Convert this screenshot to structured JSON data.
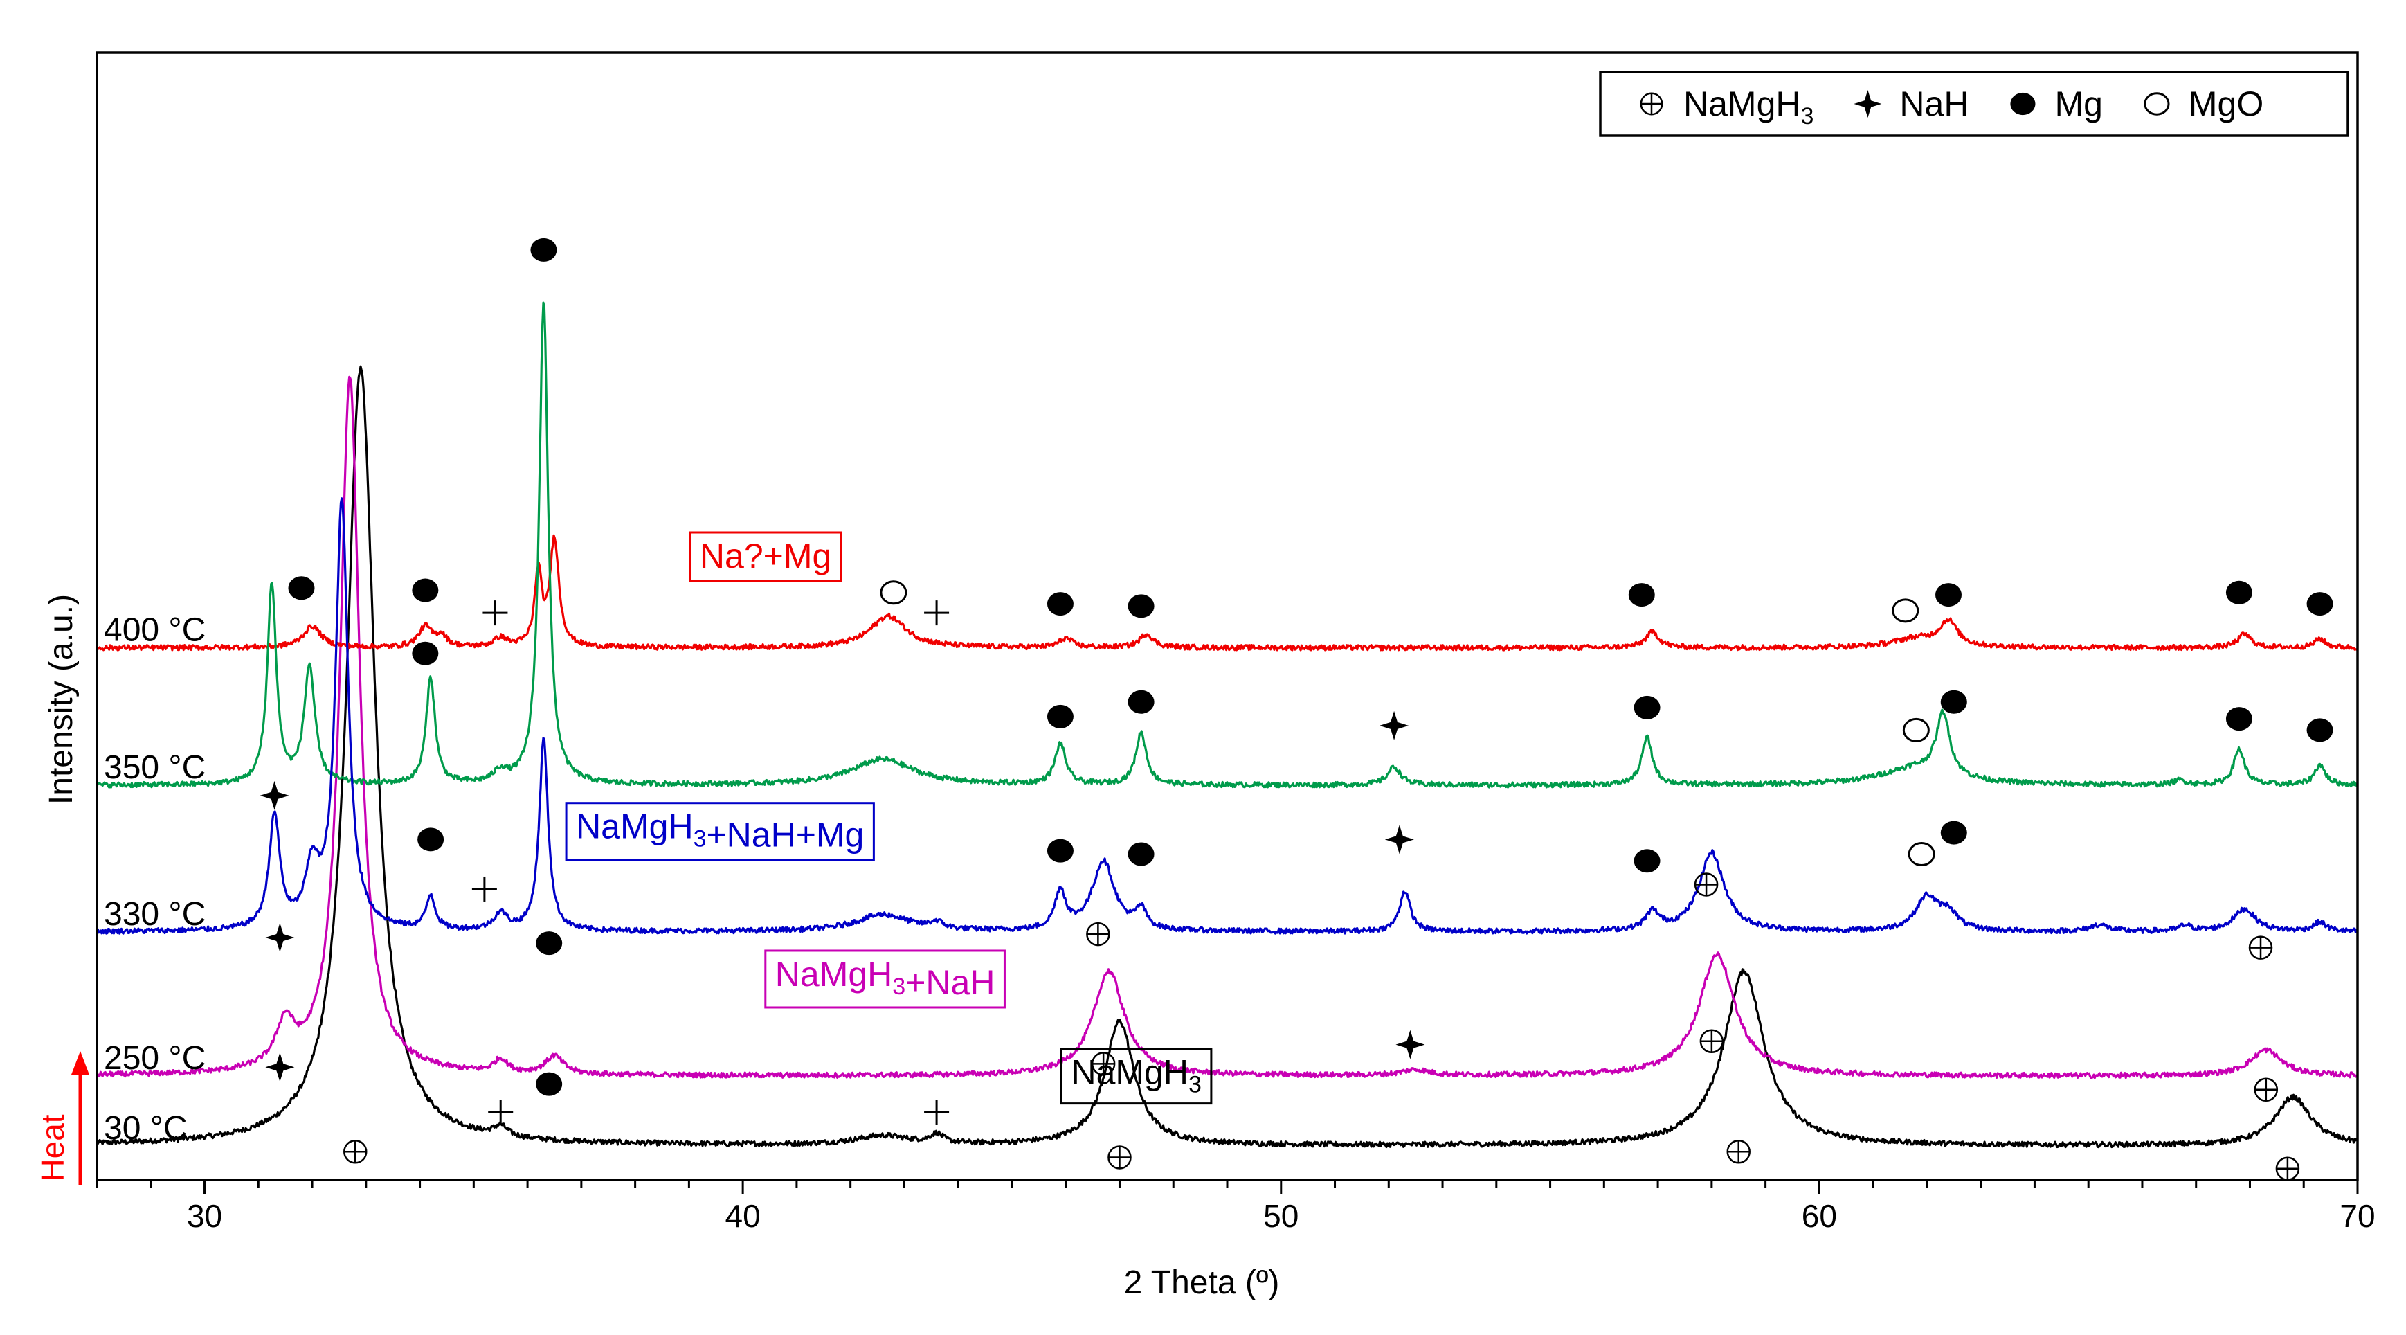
{
  "chart_data": {
    "type": "line",
    "title": "",
    "xlabel": "2 Theta (º)",
    "ylabel": "Intensity (a.u.)",
    "xlim": [
      28,
      70
    ],
    "ylim": [
      0,
      100
    ],
    "xticks": [
      30,
      40,
      50,
      60,
      70
    ],
    "x_minor_step": 1,
    "grid": false,
    "legend_position": "top-right",
    "heat_label": "Heat",
    "legend": [
      {
        "marker": "oplus",
        "name": "NaMgH",
        "sub": "3"
      },
      {
        "marker": "star",
        "name": "NaH",
        "sub": ""
      },
      {
        "marker": "filled-circle",
        "name": "Mg",
        "sub": ""
      },
      {
        "marker": "open-circle",
        "name": "MgO",
        "sub": ""
      }
    ],
    "series": [
      {
        "name": "30 °C",
        "temperature": "30 °C",
        "color": "#000000",
        "baseline": 3.0,
        "peaks": [
          [
            32.9,
            69.0,
            0.32
          ],
          [
            35.5,
            0.9,
            0.15
          ],
          [
            42.6,
            0.8,
            0.6
          ],
          [
            43.6,
            0.8,
            0.15
          ],
          [
            47.0,
            11.0,
            0.33
          ],
          [
            58.6,
            15.5,
            0.45
          ],
          [
            68.8,
            4.3,
            0.4
          ]
        ],
        "phase_box": {
          "parts": [
            {
              "text": "NaMgH",
              "sub": "3"
            }
          ],
          "color": "#000000",
          "at": [
            46.1,
            8.5
          ]
        },
        "markers": [
          {
            "type": "oplus",
            "at": [
              32.8,
              2.5
            ]
          },
          {
            "type": "plus",
            "at": [
              35.5,
              6.0
            ]
          },
          {
            "type": "plus",
            "at": [
              43.6,
              6.0
            ]
          },
          {
            "type": "oplus",
            "at": [
              47.0,
              2.0
            ]
          },
          {
            "type": "oplus",
            "at": [
              58.5,
              2.5
            ]
          },
          {
            "type": "oplus",
            "at": [
              68.7,
              1.0
            ]
          }
        ]
      },
      {
        "name": "250 °C",
        "temperature": "250 °C",
        "color": "#c800b4",
        "baseline": 9.2,
        "peaks": [
          [
            31.5,
            3.8,
            0.2
          ],
          [
            32.7,
            62.0,
            0.22
          ],
          [
            35.5,
            1.2,
            0.15
          ],
          [
            36.5,
            1.6,
            0.2
          ],
          [
            46.8,
            9.3,
            0.35
          ],
          [
            52.5,
            0.5,
            0.3
          ],
          [
            58.1,
            10.8,
            0.4
          ],
          [
            68.3,
            2.3,
            0.35
          ]
        ],
        "phase_box": {
          "parts": [
            {
              "text": "NaMgH",
              "sub": "3"
            },
            {
              "text": "+NaH",
              "sub": ""
            }
          ],
          "color": "#c800b4",
          "at": [
            40.6,
            17.2
          ]
        },
        "markers": [
          {
            "type": "star",
            "at": [
              31.4,
              10.0
            ]
          },
          {
            "type": "filled-circle",
            "at": [
              36.4,
              8.5
            ]
          },
          {
            "type": "oplus",
            "at": [
              46.7,
              10.3
            ]
          },
          {
            "type": "star",
            "at": [
              52.4,
              12.0
            ]
          },
          {
            "type": "oplus",
            "at": [
              58.0,
              12.3
            ]
          },
          {
            "type": "oplus",
            "at": [
              68.3,
              8.0
            ]
          }
        ]
      },
      {
        "name": "330 °C",
        "temperature": "330 °C",
        "color": "#0000c8",
        "baseline": 22.0,
        "peaks": [
          [
            31.3,
            10.0,
            0.12
          ],
          [
            32.0,
            5.0,
            0.15
          ],
          [
            32.55,
            38.0,
            0.14
          ],
          [
            34.2,
            3.0,
            0.1
          ],
          [
            35.5,
            1.5,
            0.15
          ],
          [
            36.3,
            17.0,
            0.1
          ],
          [
            42.6,
            1.5,
            0.6
          ],
          [
            43.6,
            0.6,
            0.15
          ],
          [
            45.9,
            3.4,
            0.12
          ],
          [
            46.7,
            6.2,
            0.25
          ],
          [
            47.4,
            1.7,
            0.12
          ],
          [
            52.3,
            3.6,
            0.12
          ],
          [
            56.9,
            1.6,
            0.15
          ],
          [
            58.0,
            7.0,
            0.28
          ],
          [
            62.0,
            3.0,
            0.25
          ],
          [
            62.4,
            1.5,
            0.2
          ],
          [
            65.2,
            0.6,
            0.2
          ],
          [
            66.8,
            0.5,
            0.15
          ],
          [
            67.9,
            2.0,
            0.25
          ],
          [
            69.3,
            0.8,
            0.15
          ]
        ],
        "phase_box": {
          "parts": [
            {
              "text": "NaMgH",
              "sub": "3"
            },
            {
              "text": "+NaH+Mg",
              "sub": ""
            }
          ],
          "color": "#0000c8",
          "at": [
            36.9,
            30.3
          ]
        },
        "markers": [
          {
            "type": "star",
            "at": [
              31.4,
              21.5
            ]
          },
          {
            "type": "filled-circle",
            "at": [
              34.2,
              30.2
            ]
          },
          {
            "type": "plus",
            "at": [
              35.2,
              25.8
            ]
          },
          {
            "type": "filled-circle",
            "at": [
              36.4,
              21.0
            ]
          },
          {
            "type": "oplus",
            "at": [
              46.6,
              21.8
            ]
          },
          {
            "type": "filled-circle",
            "at": [
              45.9,
              29.2
            ]
          },
          {
            "type": "filled-circle",
            "at": [
              47.4,
              28.9
            ]
          },
          {
            "type": "star",
            "at": [
              52.2,
              30.2
            ]
          },
          {
            "type": "filled-circle",
            "at": [
              56.8,
              28.3
            ]
          },
          {
            "type": "oplus",
            "at": [
              57.9,
              26.2
            ]
          },
          {
            "type": "open-circle",
            "at": [
              61.9,
              28.9
            ]
          },
          {
            "type": "filled-circle",
            "at": [
              62.5,
              30.8
            ]
          },
          {
            "type": "oplus",
            "at": [
              68.2,
              20.6
            ]
          }
        ]
      },
      {
        "name": "350 °C",
        "temperature": "350 °C",
        "color": "#009b4b",
        "baseline": 35.0,
        "peaks": [
          [
            31.25,
            17.8,
            0.1
          ],
          [
            31.95,
            10.4,
            0.12
          ],
          [
            34.2,
            9.5,
            0.1
          ],
          [
            35.5,
            1.0,
            0.15
          ],
          [
            36.3,
            43.0,
            0.1
          ],
          [
            42.6,
            2.3,
            0.7
          ],
          [
            45.9,
            3.6,
            0.12
          ],
          [
            47.4,
            4.6,
            0.12
          ],
          [
            52.1,
            1.6,
            0.15
          ],
          [
            56.8,
            4.2,
            0.12
          ],
          [
            62.3,
            5.5,
            0.15
          ],
          [
            61.8,
            1.5,
            0.8
          ],
          [
            67.8,
            3.2,
            0.12
          ],
          [
            69.3,
            1.8,
            0.12
          ],
          [
            66.7,
            0.4,
            0.15
          ]
        ],
        "phase_box": null,
        "markers": [
          {
            "type": "star",
            "at": [
              31.3,
              34.1
            ]
          },
          {
            "type": "filled-circle",
            "at": [
              34.1,
              46.7
            ]
          },
          {
            "type": "filled-circle",
            "at": [
              45.9,
              41.1
            ]
          },
          {
            "type": "filled-circle",
            "at": [
              47.4,
              42.4
            ]
          },
          {
            "type": "star",
            "at": [
              52.1,
              40.3
            ]
          },
          {
            "type": "filled-circle",
            "at": [
              56.8,
              41.9
            ]
          },
          {
            "type": "open-circle",
            "at": [
              61.8,
              39.9
            ]
          },
          {
            "type": "filled-circle",
            "at": [
              62.5,
              42.4
            ]
          },
          {
            "type": "filled-circle",
            "at": [
              67.8,
              40.9
            ]
          },
          {
            "type": "filled-circle",
            "at": [
              69.3,
              39.9
            ]
          }
        ]
      },
      {
        "name": "400 °C",
        "temperature": "400 °C",
        "color": "#f00000",
        "baseline": 47.2,
        "peaks": [
          [
            32.0,
            1.9,
            0.2
          ],
          [
            34.1,
            1.8,
            0.15
          ],
          [
            34.4,
            1.0,
            0.12
          ],
          [
            35.5,
            0.8,
            0.15
          ],
          [
            36.2,
            6.5,
            0.08
          ],
          [
            36.5,
            9.5,
            0.1
          ],
          [
            42.7,
            2.8,
            0.4
          ],
          [
            46.0,
            0.8,
            0.15
          ],
          [
            47.5,
            1.2,
            0.15
          ],
          [
            56.9,
            1.4,
            0.15
          ],
          [
            62.4,
            2.2,
            0.2
          ],
          [
            61.8,
            0.8,
            0.5
          ],
          [
            67.9,
            1.2,
            0.15
          ],
          [
            69.3,
            0.8,
            0.12
          ]
        ],
        "phase_box": {
          "parts": [
            {
              "text": "Na?+Mg",
              "sub": ""
            }
          ],
          "color": "#f00000",
          "at": [
            39.2,
            54.3
          ]
        },
        "markers": [
          {
            "type": "filled-circle",
            "at": [
              31.8,
              52.5
            ]
          },
          {
            "type": "filled-circle",
            "at": [
              34.1,
              52.3
            ]
          },
          {
            "type": "plus",
            "at": [
              35.4,
              50.3
            ]
          },
          {
            "type": "filled-circle",
            "at": [
              36.3,
              82.5
            ]
          },
          {
            "type": "open-circle",
            "at": [
              42.8,
              52.1
            ]
          },
          {
            "type": "plus",
            "at": [
              43.6,
              50.3
            ]
          },
          {
            "type": "filled-circle",
            "at": [
              45.9,
              51.1
            ]
          },
          {
            "type": "filled-circle",
            "at": [
              47.4,
              50.9
            ]
          },
          {
            "type": "filled-circle",
            "at": [
              56.7,
              51.9
            ]
          },
          {
            "type": "open-circle",
            "at": [
              61.6,
              50.5
            ]
          },
          {
            "type": "filled-circle",
            "at": [
              62.4,
              51.9
            ]
          },
          {
            "type": "filled-circle",
            "at": [
              67.8,
              52.1
            ]
          },
          {
            "type": "filled-circle",
            "at": [
              69.3,
              51.1
            ]
          }
        ]
      }
    ]
  }
}
